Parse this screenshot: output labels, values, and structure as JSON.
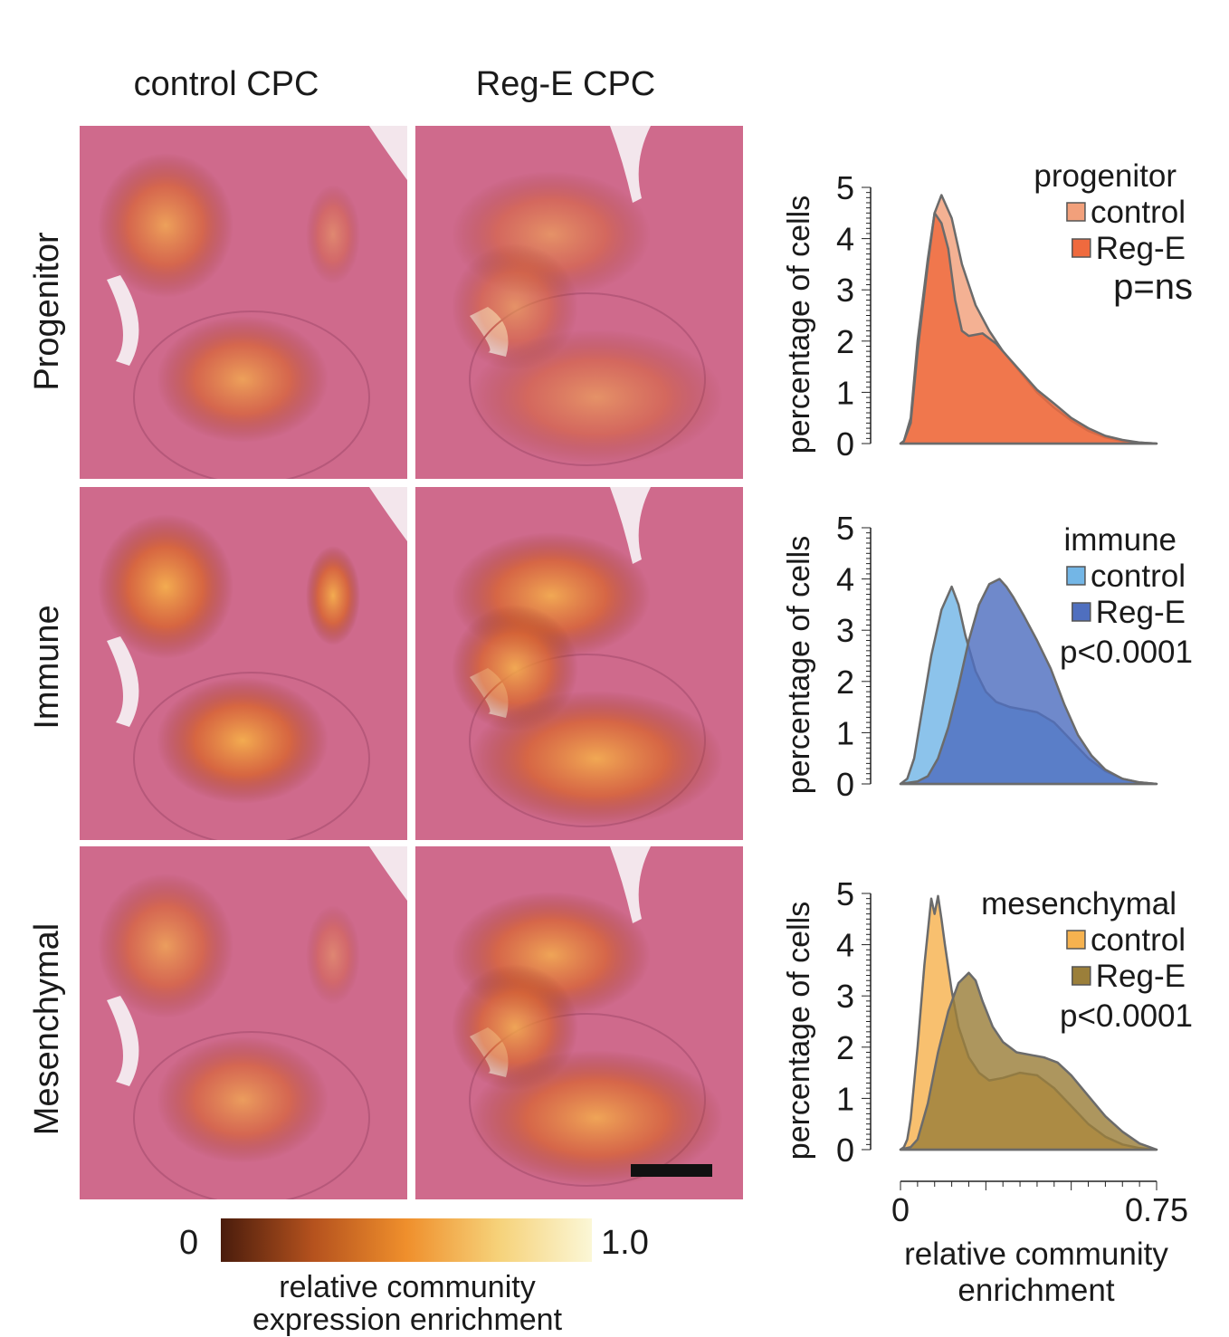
{
  "columns": [
    "control CPC",
    "Reg-E CPC"
  ],
  "rows": [
    "Progenitor",
    "Immune",
    "Mesenchymal"
  ],
  "colorbar": {
    "min_label": "0",
    "max_label": "1.0",
    "title_line1": "relative community",
    "title_line2": "expression enrichment",
    "colors": [
      "#4a1c0c",
      "#b5521e",
      "#ef8f2c",
      "#f6d27a",
      "#fbf7d6"
    ]
  },
  "chart_data": [
    {
      "type": "area",
      "title": "progenitor",
      "legend": [
        "control",
        "Reg-E"
      ],
      "annotation": "p=ns",
      "ylabel": "percentage of cells",
      "ylim": [
        0,
        5
      ],
      "xlim": [
        0,
        0.75
      ],
      "yticks": [
        "0",
        "1",
        "2",
        "3",
        "4",
        "5"
      ],
      "colors": [
        "#f2a07b",
        "#ef6a3e"
      ],
      "series": [
        {
          "name": "control",
          "x": [
            0,
            0.01,
            0.03,
            0.05,
            0.08,
            0.1,
            0.12,
            0.15,
            0.18,
            0.22,
            0.26,
            0.3,
            0.35,
            0.4,
            0.45,
            0.5,
            0.55,
            0.6,
            0.65,
            0.7,
            0.75
          ],
          "y": [
            0,
            0.05,
            0.5,
            2.0,
            3.6,
            4.5,
            4.85,
            4.4,
            3.5,
            2.7,
            2.2,
            1.8,
            1.4,
            1.0,
            0.7,
            0.45,
            0.25,
            0.12,
            0.05,
            0.02,
            0
          ]
        },
        {
          "name": "Reg-E",
          "x": [
            0,
            0.01,
            0.03,
            0.05,
            0.08,
            0.1,
            0.12,
            0.14,
            0.16,
            0.18,
            0.2,
            0.24,
            0.28,
            0.32,
            0.36,
            0.4,
            0.45,
            0.5,
            0.55,
            0.6,
            0.65,
            0.7,
            0.75
          ],
          "y": [
            0,
            0.05,
            0.4,
            1.8,
            3.5,
            4.5,
            4.3,
            3.8,
            2.8,
            2.2,
            2.1,
            2.15,
            1.95,
            1.65,
            1.35,
            1.05,
            0.78,
            0.5,
            0.3,
            0.15,
            0.07,
            0.02,
            0
          ]
        }
      ]
    },
    {
      "type": "area",
      "title": "immune",
      "legend": [
        "control",
        "Reg-E"
      ],
      "annotation": "p<0.0001",
      "ylabel": "percentage of cells",
      "ylim": [
        0,
        5
      ],
      "xlim": [
        0,
        0.75
      ],
      "yticks": [
        "0",
        "1",
        "2",
        "3",
        "4",
        "5"
      ],
      "colors": [
        "#73b6e6",
        "#4f6fbf"
      ],
      "series": [
        {
          "name": "control",
          "x": [
            0,
            0.02,
            0.04,
            0.06,
            0.09,
            0.12,
            0.15,
            0.17,
            0.19,
            0.22,
            0.25,
            0.28,
            0.32,
            0.36,
            0.4,
            0.45,
            0.5,
            0.55,
            0.6,
            0.65,
            0.7,
            0.75
          ],
          "y": [
            0,
            0.1,
            0.5,
            1.3,
            2.5,
            3.4,
            3.85,
            3.5,
            2.9,
            2.2,
            1.8,
            1.6,
            1.5,
            1.45,
            1.4,
            1.2,
            0.85,
            0.5,
            0.25,
            0.1,
            0.03,
            0
          ]
        },
        {
          "name": "Reg-E",
          "x": [
            0,
            0.05,
            0.08,
            0.11,
            0.14,
            0.17,
            0.2,
            0.23,
            0.26,
            0.29,
            0.31,
            0.33,
            0.36,
            0.4,
            0.44,
            0.48,
            0.52,
            0.56,
            0.6,
            0.65,
            0.7,
            0.75
          ],
          "y": [
            0,
            0.05,
            0.15,
            0.5,
            1.1,
            1.9,
            2.8,
            3.5,
            3.9,
            4.0,
            3.85,
            3.65,
            3.3,
            2.8,
            2.25,
            1.55,
            0.95,
            0.55,
            0.28,
            0.1,
            0.03,
            0
          ]
        }
      ]
    },
    {
      "type": "area",
      "title": "mesenchymal",
      "legend": [
        "control",
        "Reg-E"
      ],
      "annotation": "p<0.0001",
      "ylabel": "percentage of cells",
      "ylim": [
        0,
        5
      ],
      "xlim": [
        0,
        0.75
      ],
      "yticks": [
        "0",
        "1",
        "2",
        "3",
        "4",
        "5"
      ],
      "colors": [
        "#f6b24f",
        "#9b7f3a"
      ],
      "series": [
        {
          "name": "control",
          "x": [
            0,
            0.01,
            0.02,
            0.03,
            0.05,
            0.07,
            0.09,
            0.1,
            0.11,
            0.12,
            0.13,
            0.15,
            0.17,
            0.2,
            0.23,
            0.26,
            0.3,
            0.35,
            0.4,
            0.45,
            0.5,
            0.55,
            0.6,
            0.65,
            0.7,
            0.75
          ],
          "y": [
            0,
            0.05,
            0.2,
            0.6,
            2.0,
            3.6,
            4.9,
            4.6,
            4.95,
            4.5,
            4.0,
            3.1,
            2.4,
            1.8,
            1.5,
            1.35,
            1.4,
            1.5,
            1.45,
            1.2,
            0.85,
            0.5,
            0.25,
            0.1,
            0.03,
            0
          ]
        },
        {
          "name": "Reg-E",
          "x": [
            0,
            0.03,
            0.05,
            0.08,
            0.11,
            0.14,
            0.17,
            0.2,
            0.22,
            0.24,
            0.27,
            0.3,
            0.34,
            0.38,
            0.42,
            0.46,
            0.5,
            0.55,
            0.6,
            0.65,
            0.7,
            0.75
          ],
          "y": [
            0,
            0.05,
            0.2,
            0.9,
            1.9,
            2.7,
            3.25,
            3.45,
            3.3,
            2.9,
            2.4,
            2.1,
            1.9,
            1.85,
            1.8,
            1.7,
            1.45,
            1.05,
            0.65,
            0.35,
            0.12,
            0
          ]
        }
      ]
    }
  ],
  "x_axis": {
    "min_label": "0",
    "max_label": "0.75",
    "title_line1": "relative community",
    "title_line2": "enrichment"
  }
}
